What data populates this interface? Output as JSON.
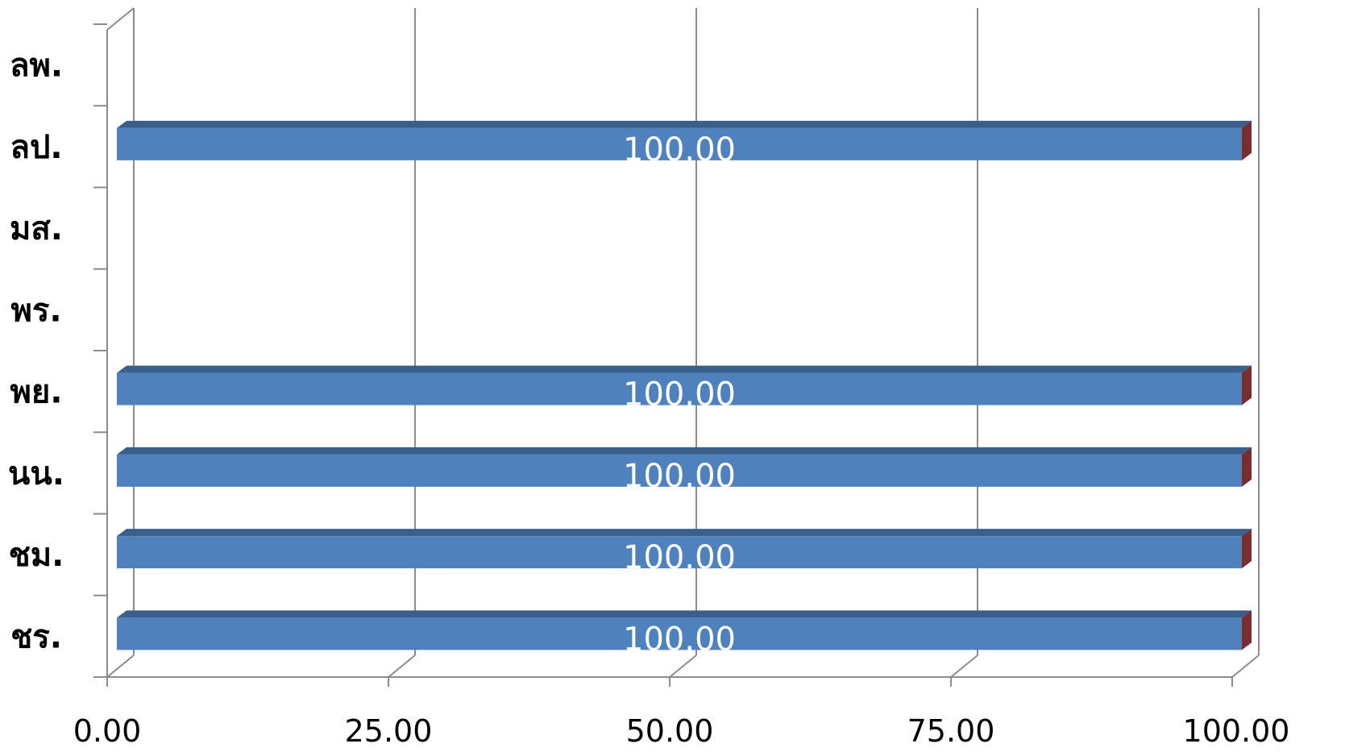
{
  "chart_data": {
    "type": "bar",
    "orientation": "horizontal",
    "style": "3d",
    "categories": [
      "ชร.",
      "ชม.",
      "นน.",
      "พย.",
      "พร.",
      "มส.",
      "ลป.",
      "ลพ."
    ],
    "values": [
      100.0,
      100.0,
      100.0,
      100.0,
      null,
      null,
      100.0,
      null
    ],
    "data_labels": [
      "100.00",
      "100.00",
      "100.00",
      "100.00",
      "",
      "",
      "100.00",
      ""
    ],
    "xlim": [
      0,
      100
    ],
    "x_ticks": [
      0,
      25,
      50,
      75,
      100
    ],
    "x_tick_labels": [
      "0.00",
      "25.00",
      "50.00",
      "75.00",
      "100.00"
    ],
    "grid": true,
    "legend": "none",
    "colors": {
      "bar_front": "#4F81BD",
      "bar_top": "#3A5F8C",
      "bar_end": "#7B2C2C",
      "grid": "#8C8C8C",
      "data_label": "#FFFFFF"
    }
  }
}
